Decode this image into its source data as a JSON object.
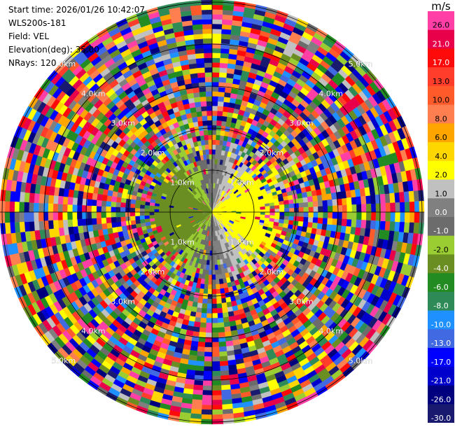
{
  "info": {
    "start_time": "Start time: 2026/01/26 10:42:07",
    "instrument": "WLS200s-181",
    "field": "Field: VEL",
    "elevation": "Elevation(deg): 35.00",
    "nrays": "NRays: 120"
  },
  "colorbar": {
    "unit": "m/s",
    "entries": [
      {
        "label": "26.0",
        "color": "#ff3fa6"
      },
      {
        "label": "21.0",
        "color": "#e8004a"
      },
      {
        "label": "17.0",
        "color": "#ff0a0a"
      },
      {
        "label": "13.0",
        "color": "#ff3d2a"
      },
      {
        "label": "10.0",
        "color": "#ff5a2a"
      },
      {
        "label": "8.0",
        "color": "#ff7f50"
      },
      {
        "label": "6.0",
        "color": "#ffa500"
      },
      {
        "label": "4.0",
        "color": "#ffd700"
      },
      {
        "label": "2.0",
        "color": "#ffff00"
      },
      {
        "label": "1.0",
        "color": "#c0c0c0"
      },
      {
        "label": "0.0",
        "color": "#808080"
      },
      {
        "label": "-1.0",
        "color": "#6c6c6c"
      },
      {
        "label": "-2.0",
        "color": "#9acd32"
      },
      {
        "label": "-4.0",
        "color": "#6b8e23"
      },
      {
        "label": "-6.0",
        "color": "#228b22"
      },
      {
        "label": "-8.0",
        "color": "#2e8b57"
      },
      {
        "label": "-10.0",
        "color": "#1e90ff"
      },
      {
        "label": "-13.0",
        "color": "#4169e1"
      },
      {
        "label": "-17.0",
        "color": "#0000ff"
      },
      {
        "label": "-21.0",
        "color": "#0000cd"
      },
      {
        "label": "-26.0",
        "color": "#00007f"
      },
      {
        "label": "-30.0",
        "color": "#191970"
      }
    ]
  },
  "ring_labels": [
    "1.0km",
    "2.0km",
    "3.0km",
    "4.0km",
    "5.0km"
  ],
  "chart_data": {
    "type": "heatmap",
    "subtype": "polar-ppi",
    "field": "VEL",
    "units": "m/s",
    "nrays": 120,
    "elevation_deg": 35.0,
    "range_rings_km": [
      1.0,
      2.0,
      3.0,
      4.0,
      5.0
    ],
    "value_range": [
      -30.0,
      26.0
    ],
    "pattern": "Coherent radial velocity only within ~1 km: negative (toward, green/blue) on west half, positive (away, yellow/orange) on east half; noise (random colors) beyond ~1.5 km."
  }
}
